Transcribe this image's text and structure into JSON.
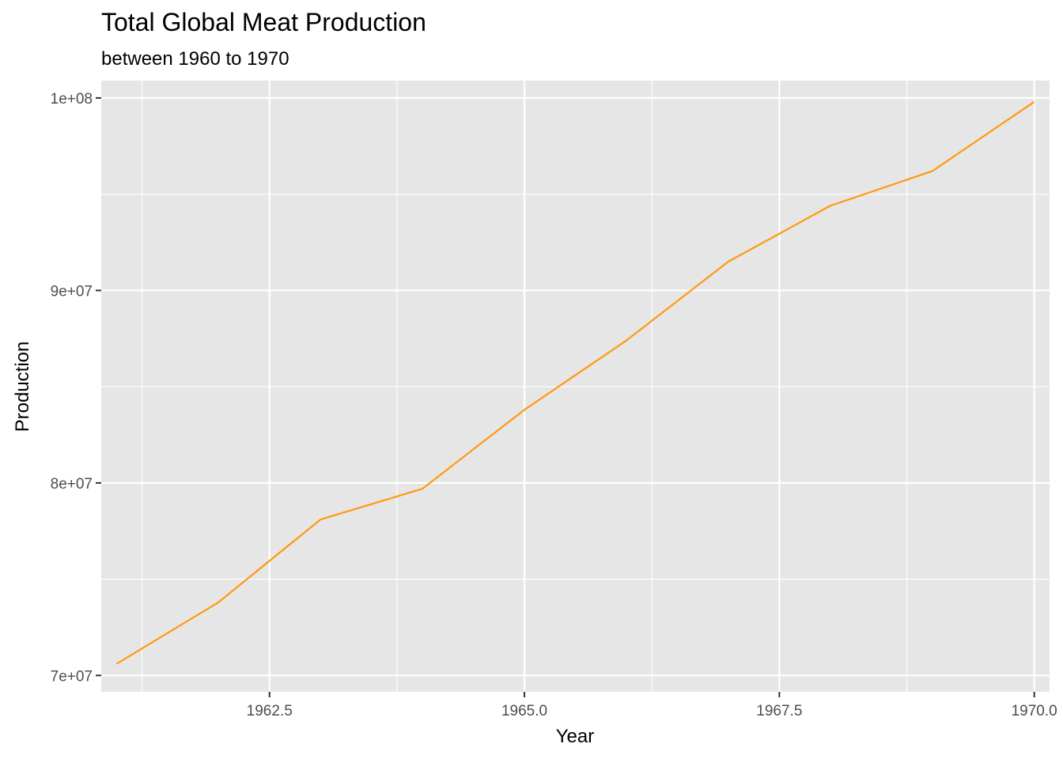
{
  "chart_data": {
    "type": "line",
    "title": "Total Global Meat Production",
    "subtitle": "between 1960 to 1970",
    "xlabel": "Year",
    "ylabel": "Production",
    "x": [
      1961,
      1962,
      1963,
      1964,
      1965,
      1966,
      1967,
      1968,
      1969,
      1970
    ],
    "series": [
      {
        "values": [
          70600000,
          73800000,
          78100000,
          79700000,
          83800000,
          87400000,
          91500000,
          94400000,
          96200000,
          99800000
        ]
      }
    ],
    "xlim": [
      1960.85,
      1970.15
    ],
    "ylim": [
      69150000,
      100900000
    ],
    "xticks": [
      1962.5,
      1965.0,
      1967.5,
      1970.0
    ],
    "xtick_labels": [
      "1962.5",
      "1965.0",
      "1967.5",
      "1970.0"
    ],
    "yticks": [
      70000000,
      80000000,
      90000000,
      100000000
    ],
    "ytick_labels": [
      "7e+07",
      "8e+07",
      "9e+07",
      "1e+08"
    ],
    "x_minor_ticks": [
      1961.25,
      1963.75,
      1966.25,
      1968.75
    ],
    "y_minor_ticks": [
      75000000,
      85000000,
      95000000
    ],
    "grid": true,
    "colors": {
      "line": "#ff9a0e",
      "panel_background": "#e6e6e6",
      "grid": "#ffffff"
    }
  }
}
